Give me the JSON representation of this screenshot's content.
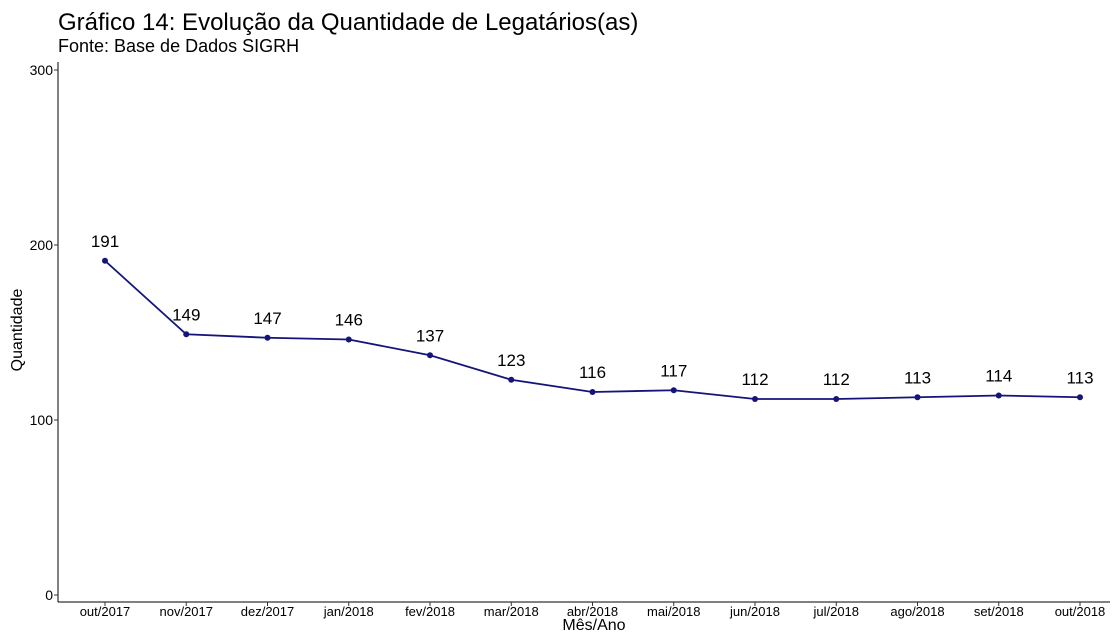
{
  "chart_data": {
    "type": "line",
    "title": "Gráfico 14: Evolução da Quantidade de Legatários(as)",
    "subtitle": "Fonte: Base de Dados SIGRH",
    "x_label": "Mês/Ano",
    "y_label": "Quantidade",
    "categories": [
      "out/2017",
      "nov/2017",
      "dez/2017",
      "jan/2018",
      "fev/2018",
      "mar/2018",
      "abr/2018",
      "mai/2018",
      "jun/2018",
      "jul/2018",
      "ago/2018",
      "set/2018",
      "out/2018"
    ],
    "series": [
      {
        "name": "Quantidade",
        "color": "#14147a",
        "values": [
          191,
          149,
          147,
          146,
          137,
          123,
          116,
          117,
          112,
          112,
          113,
          114,
          113
        ]
      }
    ],
    "ylim": [
      0,
      300
    ],
    "yticks": [
      0,
      100,
      200,
      300
    ],
    "grid": false
  }
}
